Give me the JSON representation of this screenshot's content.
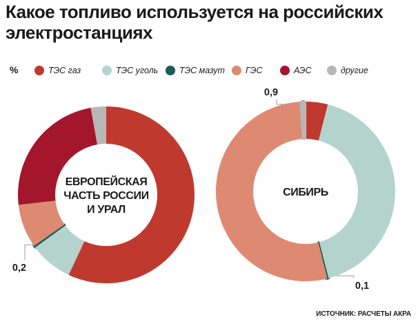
{
  "title": {
    "line1": "Какое топливо используется на российских",
    "line2": "электростанциях"
  },
  "legend": {
    "unit": "%",
    "items": [
      {
        "label": "ТЭС газ",
        "color": "#c0392f"
      },
      {
        "label": "ТЭС уголь",
        "color": "#b4d3cd"
      },
      {
        "label": "ТЭС мазут",
        "color": "#1f5b57"
      },
      {
        "label": "ГЭС",
        "color": "#de8a72"
      },
      {
        "label": "АЭС",
        "color": "#a4162c"
      },
      {
        "label": "другие",
        "color": "#b7b7b7"
      }
    ]
  },
  "chart_data": [
    {
      "type": "pie",
      "title": "ЕВРОПЕЙСКАЯ ЧАСТЬ РОССИИ И УРАЛ",
      "title_lines": [
        "ЕВРОПЕЙСКАЯ",
        "ЧАСТЬ РОССИИ",
        "И УРАЛ"
      ],
      "slices": [
        {
          "label": "ТЭС газ",
          "value": 57,
          "display": "57",
          "color": "#c0392f"
        },
        {
          "label": "ТЭС уголь",
          "value": 8,
          "display": "8",
          "color": "#b4d3cd"
        },
        {
          "label": "ТЭС мазут",
          "value": 0.2,
          "display": "0,2",
          "color": "#1f5b57"
        },
        {
          "label": "ГЭС",
          "value": 8,
          "display": "8",
          "color": "#de8a72"
        },
        {
          "label": "АЭС",
          "value": 24,
          "display": "24",
          "color": "#a4162c"
        },
        {
          "label": "другие",
          "value": 2.8,
          "display": "2,8",
          "color": "#b7b7b7"
        }
      ]
    },
    {
      "type": "pie",
      "title": "СИБИРЬ",
      "title_lines": [
        "СИБИРЬ"
      ],
      "slices": [
        {
          "label": "ТЭС газ",
          "value": 4,
          "display": "4",
          "color": "#c0392f"
        },
        {
          "label": "ТЭС уголь",
          "value": 42,
          "display": "42",
          "color": "#b4d3cd"
        },
        {
          "label": "ТЭС мазут",
          "value": 0.1,
          "display": "0,1",
          "color": "#1f5b57"
        },
        {
          "label": "ГЭС",
          "value": 53,
          "display": "53",
          "color": "#de8a72"
        },
        {
          "label": "другие",
          "value": 0.9,
          "display": "0,9",
          "color": "#b7b7b7"
        }
      ]
    }
  ],
  "source": "ИСТОЧНИК: РАСЧЕТЫ АКРА"
}
